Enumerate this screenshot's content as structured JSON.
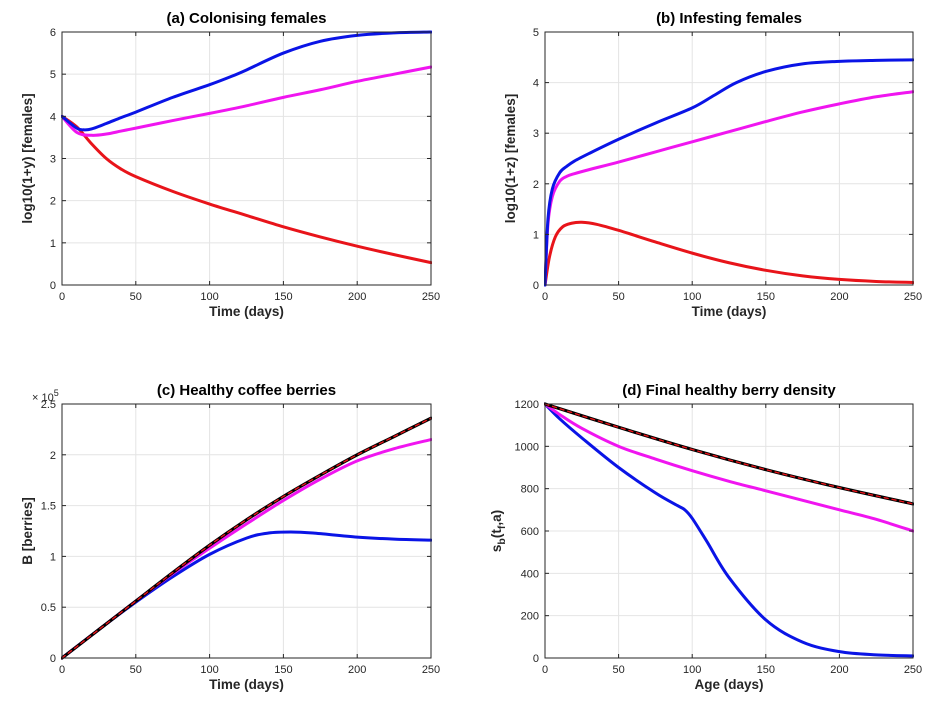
{
  "colors": {
    "red": "#e8141a",
    "magenta": "#f015f0",
    "blue": "#0a14e6",
    "black": "#000000",
    "grid": "#e4e4e4"
  },
  "chart_data": [
    {
      "type": "line",
      "title": "(a) Colonising females",
      "xlabel": "Time (days)",
      "ylabel": "log10(1+y) [females]",
      "xlim": [
        0,
        250
      ],
      "ylim": [
        0,
        6
      ],
      "xticks": [
        0,
        50,
        100,
        150,
        200,
        250
      ],
      "yticks": [
        0,
        1,
        2,
        3,
        4,
        5,
        6
      ],
      "grid": true,
      "series": [
        {
          "color": "#e8141a",
          "x": [
            0,
            10,
            20,
            30,
            40,
            50,
            75,
            100,
            125,
            150,
            175,
            200,
            225,
            250
          ],
          "y": [
            4.0,
            3.75,
            3.35,
            3.0,
            2.75,
            2.57,
            2.22,
            1.92,
            1.65,
            1.38,
            1.14,
            0.92,
            0.72,
            0.53
          ]
        },
        {
          "color": "#f015f0",
          "x": [
            0,
            10,
            20,
            30,
            40,
            50,
            75,
            100,
            125,
            150,
            175,
            200,
            225,
            250
          ],
          "y": [
            4.0,
            3.62,
            3.55,
            3.58,
            3.65,
            3.72,
            3.9,
            4.07,
            4.25,
            4.45,
            4.63,
            4.83,
            5.0,
            5.17
          ]
        },
        {
          "color": "#0a14e6",
          "x": [
            0,
            10,
            15,
            20,
            30,
            40,
            50,
            75,
            100,
            115,
            125,
            150,
            175,
            200,
            225,
            250
          ],
          "y": [
            4.0,
            3.72,
            3.68,
            3.7,
            3.83,
            3.97,
            4.1,
            4.45,
            4.75,
            4.95,
            5.1,
            5.5,
            5.78,
            5.92,
            5.98,
            6.0
          ]
        }
      ]
    },
    {
      "type": "line",
      "title": "(b) Infesting females",
      "xlabel": "Time (days)",
      "ylabel": "log10(1+z) [females]",
      "xlim": [
        0,
        250
      ],
      "ylim": [
        0,
        5
      ],
      "xticks": [
        0,
        50,
        100,
        150,
        200,
        250
      ],
      "yticks": [
        0,
        1,
        2,
        3,
        4,
        5
      ],
      "grid": true,
      "series": [
        {
          "color": "#e8141a",
          "x": [
            0,
            3,
            7,
            12,
            18,
            25,
            35,
            50,
            75,
            100,
            125,
            150,
            175,
            200,
            225,
            250
          ],
          "y": [
            0,
            0.55,
            0.95,
            1.15,
            1.22,
            1.24,
            1.2,
            1.08,
            0.85,
            0.63,
            0.44,
            0.29,
            0.18,
            0.11,
            0.07,
            0.05
          ]
        },
        {
          "color": "#f015f0",
          "x": [
            0,
            2,
            5,
            10,
            15,
            20,
            30,
            50,
            75,
            100,
            125,
            150,
            175,
            200,
            225,
            250
          ],
          "y": [
            0,
            1.2,
            1.75,
            2.05,
            2.15,
            2.2,
            2.28,
            2.43,
            2.63,
            2.83,
            3.03,
            3.23,
            3.42,
            3.58,
            3.72,
            3.82
          ]
        },
        {
          "color": "#0a14e6",
          "x": [
            0,
            2,
            5,
            10,
            15,
            20,
            30,
            50,
            75,
            100,
            115,
            130,
            150,
            175,
            200,
            225,
            250
          ],
          "y": [
            0,
            1.3,
            1.9,
            2.22,
            2.35,
            2.45,
            2.6,
            2.88,
            3.2,
            3.5,
            3.75,
            4.0,
            4.22,
            4.37,
            4.42,
            4.44,
            4.45
          ]
        }
      ]
    },
    {
      "type": "line",
      "title": "(c) Healthy coffee berries",
      "xlabel": "Time (days)",
      "ylabel": "B [berries]",
      "y_exponent_label": "× 10",
      "y_exponent": "5",
      "xlim": [
        0,
        250
      ],
      "ylim": [
        0,
        2.5
      ],
      "xticks": [
        0,
        50,
        100,
        150,
        200,
        250
      ],
      "yticks": [
        0,
        0.5,
        1,
        1.5,
        2,
        2.5
      ],
      "ytick_labels": [
        "0",
        "0.5",
        "1",
        "1.5",
        "2",
        "2.5"
      ],
      "grid": true,
      "series": [
        {
          "color": "#0a14e6",
          "width": 3,
          "x": [
            0,
            25,
            50,
            75,
            100,
            125,
            140,
            155,
            170,
            200,
            225,
            250
          ],
          "y": [
            0,
            0.28,
            0.55,
            0.8,
            1.02,
            1.18,
            1.23,
            1.24,
            1.23,
            1.19,
            1.17,
            1.16
          ]
        },
        {
          "color": "#f015f0",
          "width": 3,
          "x": [
            0,
            25,
            50,
            75,
            100,
            125,
            150,
            175,
            200,
            225,
            250
          ],
          "y": [
            0,
            0.28,
            0.56,
            0.83,
            1.08,
            1.32,
            1.55,
            1.76,
            1.94,
            2.06,
            2.15
          ]
        },
        {
          "color": "#000000",
          "width": 3.2,
          "x": [
            0,
            25,
            50,
            75,
            100,
            125,
            150,
            175,
            200,
            225,
            250
          ],
          "y": [
            0,
            0.28,
            0.56,
            0.84,
            1.11,
            1.36,
            1.59,
            1.8,
            2.0,
            2.18,
            2.36
          ]
        },
        {
          "color": "#e8141a",
          "width": 1.4,
          "dash": "4,4",
          "x": [
            0,
            25,
            50,
            75,
            100,
            125,
            150,
            175,
            200,
            225,
            250
          ],
          "y": [
            0,
            0.28,
            0.56,
            0.84,
            1.11,
            1.36,
            1.59,
            1.8,
            2.0,
            2.18,
            2.36
          ]
        }
      ]
    },
    {
      "type": "line",
      "title": "(d) Final healthy berry density",
      "xlabel": "Age (days)",
      "ylabel_main": "s",
      "ylabel_sub": "b",
      "ylabel_open": "(t",
      "ylabel_sub2": "f",
      "ylabel_close": ",a)",
      "xlim": [
        0,
        250
      ],
      "ylim": [
        0,
        1200
      ],
      "xticks": [
        0,
        50,
        100,
        150,
        200,
        250
      ],
      "yticks": [
        0,
        200,
        400,
        600,
        800,
        1000,
        1200
      ],
      "grid": true,
      "series": [
        {
          "color": "#0a14e6",
          "width": 3,
          "x": [
            0,
            10,
            25,
            50,
            75,
            90,
            95,
            100,
            110,
            125,
            150,
            175,
            200,
            225,
            250
          ],
          "y": [
            1200,
            1130,
            1040,
            900,
            780,
            720,
            700,
            660,
            550,
            380,
            180,
            75,
            30,
            15,
            10
          ]
        },
        {
          "color": "#f015f0",
          "width": 3,
          "x": [
            0,
            10,
            25,
            50,
            75,
            100,
            125,
            150,
            175,
            200,
            225,
            250
          ],
          "y": [
            1200,
            1150,
            1085,
            1000,
            940,
            885,
            835,
            790,
            745,
            700,
            655,
            600
          ]
        },
        {
          "color": "#000000",
          "width": 3.2,
          "x": [
            0,
            50,
            100,
            150,
            200,
            250
          ],
          "y": [
            1200,
            1090,
            985,
            890,
            805,
            728
          ]
        },
        {
          "color": "#e8141a",
          "width": 1.4,
          "dash": "4,4",
          "x": [
            0,
            50,
            100,
            150,
            200,
            250
          ],
          "y": [
            1200,
            1090,
            985,
            890,
            805,
            728
          ]
        }
      ]
    }
  ]
}
